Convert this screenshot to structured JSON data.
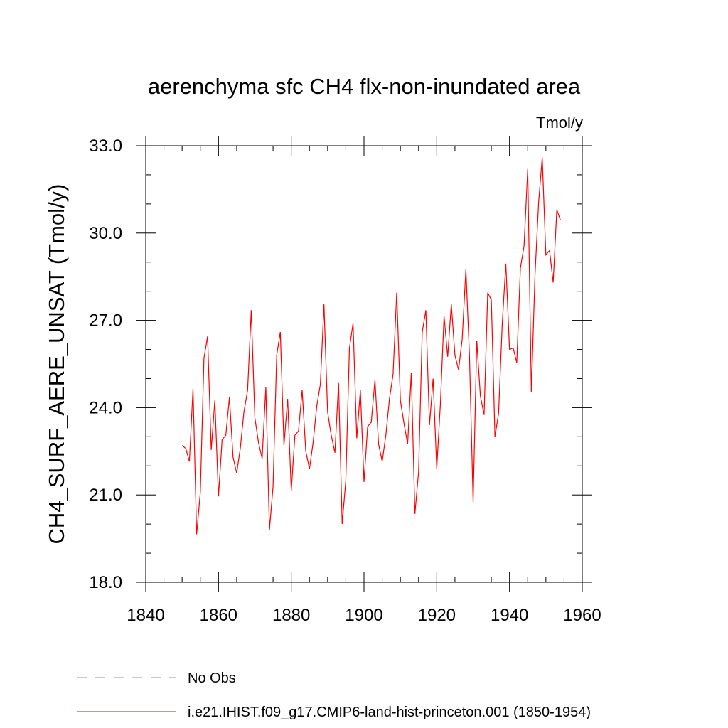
{
  "chart_data": {
    "type": "line",
    "title": "aerenchyma sfc CH4 flx-non-inundated area",
    "units_label": "Tmol/y",
    "xlabel": "",
    "ylabel": "CH4_SURF_AERE_UNSAT  (Tmol/y)",
    "xlim": [
      1840,
      1960
    ],
    "ylim": [
      18.0,
      33.0
    ],
    "x_ticks": [
      1840,
      1860,
      1880,
      1900,
      1920,
      1940,
      1960
    ],
    "x_tick_labels": [
      "1840",
      "1860",
      "1880",
      "1900",
      "1920",
      "1940",
      "1960"
    ],
    "y_ticks": [
      18.0,
      21.0,
      24.0,
      27.0,
      30.0,
      33.0
    ],
    "y_tick_labels": [
      "18.0",
      "21.0",
      "24.0",
      "27.0",
      "30.0",
      "33.0"
    ],
    "x_minor_step": 5,
    "y_minor_step": 1.0,
    "grid": false,
    "legend_position": "bottom",
    "series": [
      {
        "name": "No Obs",
        "color": "#8888cc",
        "style": "dashed",
        "x": [],
        "values": []
      },
      {
        "name": "i.e21.IHIST.f09_g17.CMIP6-land-hist-princeton.001 (1850-1954)",
        "color": "#ff0000",
        "style": "solid",
        "x": [
          1850,
          1851,
          1852,
          1853,
          1854,
          1855,
          1856,
          1857,
          1858,
          1859,
          1860,
          1861,
          1862,
          1863,
          1864,
          1865,
          1866,
          1867,
          1868,
          1869,
          1870,
          1871,
          1872,
          1873,
          1874,
          1875,
          1876,
          1877,
          1878,
          1879,
          1880,
          1881,
          1882,
          1883,
          1884,
          1885,
          1886,
          1887,
          1888,
          1889,
          1890,
          1891,
          1892,
          1893,
          1894,
          1895,
          1896,
          1897,
          1898,
          1899,
          1900,
          1901,
          1902,
          1903,
          1904,
          1905,
          1906,
          1907,
          1908,
          1909,
          1910,
          1911,
          1912,
          1913,
          1914,
          1915,
          1916,
          1917,
          1918,
          1919,
          1920,
          1921,
          1922,
          1923,
          1924,
          1925,
          1926,
          1927,
          1928,
          1929,
          1930,
          1931,
          1932,
          1933,
          1934,
          1935,
          1936,
          1937,
          1938,
          1939,
          1940,
          1941,
          1942,
          1943,
          1944,
          1945,
          1946,
          1947,
          1948,
          1949,
          1950,
          1951,
          1952,
          1953,
          1954
        ],
        "values": [
          22.7,
          22.6,
          22.15,
          24.65,
          19.65,
          21.1,
          25.7,
          26.45,
          22.55,
          24.25,
          20.95,
          22.9,
          23.05,
          24.35,
          22.3,
          21.75,
          22.6,
          23.85,
          24.6,
          27.35,
          23.65,
          22.8,
          22.25,
          24.7,
          19.8,
          21.3,
          25.8,
          26.6,
          22.7,
          24.3,
          21.15,
          23.05,
          23.2,
          24.6,
          22.5,
          21.9,
          22.8,
          24.05,
          24.8,
          27.55,
          23.85,
          23.05,
          22.45,
          24.85,
          20.0,
          21.5,
          26.05,
          26.9,
          22.95,
          24.6,
          21.45,
          23.35,
          23.5,
          24.95,
          22.75,
          22.15,
          23.05,
          24.3,
          25.15,
          27.95,
          24.25,
          23.45,
          22.75,
          25.2,
          20.35,
          21.8,
          26.6,
          27.35,
          23.4,
          25.0,
          21.9,
          24.15,
          27.15,
          25.75,
          27.55,
          25.8,
          25.3,
          26.35,
          28.75,
          25.75,
          20.75,
          26.3,
          24.4,
          23.75,
          27.95,
          27.7,
          23.0,
          23.8,
          26.85,
          28.95,
          26.0,
          26.05,
          25.55,
          28.8,
          29.55,
          32.2,
          24.55,
          28.55,
          31.05,
          32.6,
          29.25,
          29.4,
          28.3,
          30.8,
          30.45
        ]
      }
    ]
  }
}
